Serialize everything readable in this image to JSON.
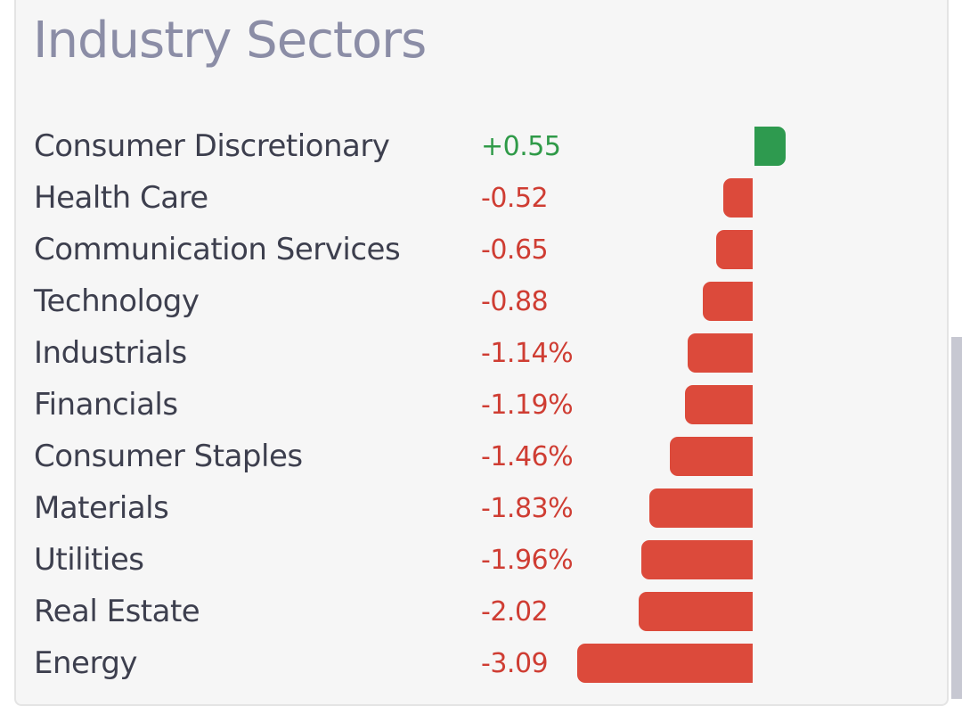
{
  "colors": {
    "positive": "#2e9a4f",
    "negative": "#dc4a3b",
    "positive_text": "#2f9a48",
    "negative_text": "#cf3d33"
  },
  "chart_data": {
    "type": "bar",
    "title": "Industry Sectors",
    "orientation": "horizontal",
    "categories": [
      "Consumer Discretionary",
      "Health Care",
      "Communication Services",
      "Technology",
      "Industrials",
      "Financials",
      "Consumer Staples",
      "Materials",
      "Utilities",
      "Real Estate",
      "Energy"
    ],
    "values": [
      0.55,
      -0.52,
      -0.65,
      -0.88,
      -1.14,
      -1.19,
      -1.46,
      -1.83,
      -1.96,
      -2.02,
      -3.09
    ],
    "value_labels": [
      "+0.55",
      "-0.52",
      "-0.65",
      "-0.88",
      "-1.14%",
      "-1.19%",
      "-1.46%",
      "-1.83%",
      "-1.96%",
      "-2.02",
      "-3.09"
    ],
    "grid": false,
    "legend": false
  }
}
